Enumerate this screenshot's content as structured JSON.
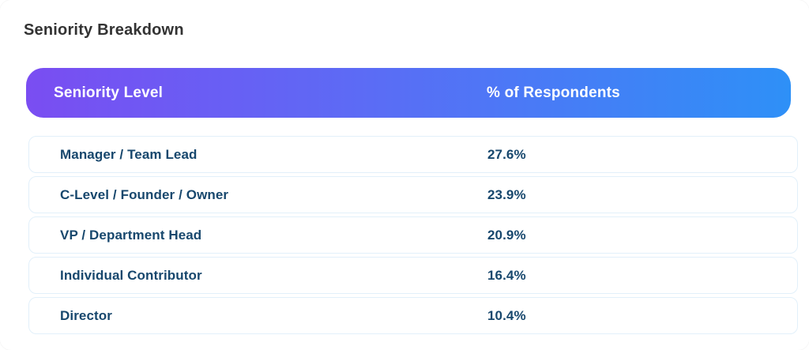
{
  "page": {
    "title": "Seniority Breakdown"
  },
  "table": {
    "columns": [
      {
        "label": "Seniority Level"
      },
      {
        "label": "% of Respondents"
      }
    ],
    "rows": [
      {
        "level": "Manager / Team Lead",
        "pct": "27.6%"
      },
      {
        "level": "C-Level / Founder / Owner",
        "pct": "23.9%"
      },
      {
        "level": "VP / Department Head",
        "pct": "20.9%"
      },
      {
        "level": "Individual Contributor",
        "pct": "16.4%"
      },
      {
        "level": "Director",
        "pct": "10.4%"
      }
    ],
    "colors": {
      "header_gradient_start": "#7a4df2",
      "header_gradient_end": "#2e90f7",
      "header_text": "#ffffff",
      "row_text": "#17476d",
      "row_border": "#e2f0fa",
      "title_text": "#333333"
    }
  },
  "chart_data": {
    "type": "table",
    "title": "Seniority Breakdown",
    "columns": [
      "Seniority Level",
      "% of Respondents"
    ],
    "categories": [
      "Manager / Team Lead",
      "C-Level / Founder / Owner",
      "VP / Department Head",
      "Individual Contributor",
      "Director"
    ],
    "values": [
      27.6,
      23.9,
      20.9,
      16.4,
      10.4
    ],
    "value_unit": "percent_of_respondents"
  }
}
